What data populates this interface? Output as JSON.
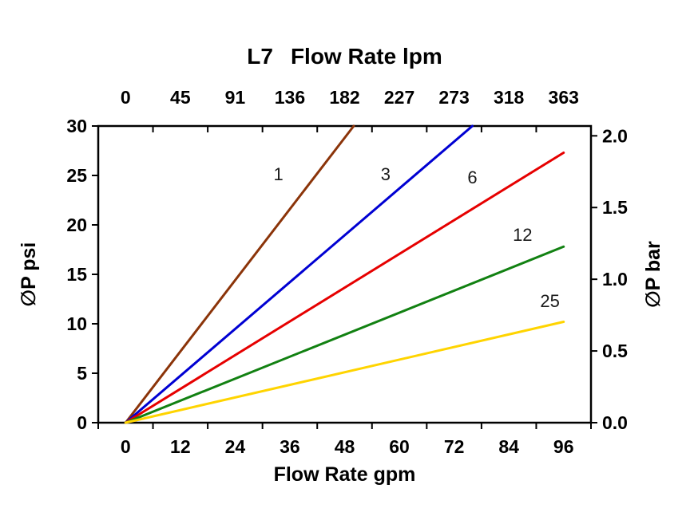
{
  "title": "L7",
  "chart_data": {
    "type": "line",
    "title": "L7",
    "top_axis": {
      "label": "Flow Rate lpm",
      "ticks": [
        0,
        45,
        91,
        136,
        182,
        227,
        273,
        318,
        363
      ]
    },
    "bottom_axis": {
      "label": "Flow Rate gpm",
      "ticks": [
        0,
        12,
        24,
        36,
        48,
        60,
        72,
        84,
        96
      ],
      "range": [
        0,
        96
      ]
    },
    "left_axis": {
      "label": "∅P psi",
      "ticks": [
        0,
        5,
        10,
        15,
        20,
        25,
        30
      ],
      "range": [
        0,
        30
      ]
    },
    "right_axis": {
      "label": "∅P bar",
      "tick_labels": [
        "0.0",
        "0.5",
        "1.0",
        "1.5",
        "2.0"
      ],
      "psi_per_bar": 14.5038
    },
    "grid": false,
    "legend": "inline-labels",
    "background": "#FFFFFF",
    "axis_color": "#000000",
    "series": [
      {
        "name": "1",
        "color": "#8B3409",
        "points": [
          [
            0,
            0
          ],
          [
            50,
            30
          ]
        ],
        "label_pos": [
          33.5,
          24.5
        ]
      },
      {
        "name": "3",
        "color": "#0000D2",
        "points": [
          [
            0,
            0
          ],
          [
            76,
            30
          ]
        ],
        "label_pos": [
          57,
          24.5
        ]
      },
      {
        "name": "6",
        "color": "#E60000",
        "points": [
          [
            0,
            0
          ],
          [
            96,
            27.3
          ]
        ],
        "label_pos": [
          76,
          24.2
        ]
      },
      {
        "name": "12",
        "color": "#128112",
        "points": [
          [
            0,
            0
          ],
          [
            96,
            17.8
          ]
        ],
        "label_pos": [
          87,
          18.4
        ]
      },
      {
        "name": "25",
        "color": "#FFD400",
        "points": [
          [
            0,
            0
          ],
          [
            96,
            10.2
          ]
        ],
        "label_pos": [
          93,
          11.7
        ]
      }
    ]
  }
}
